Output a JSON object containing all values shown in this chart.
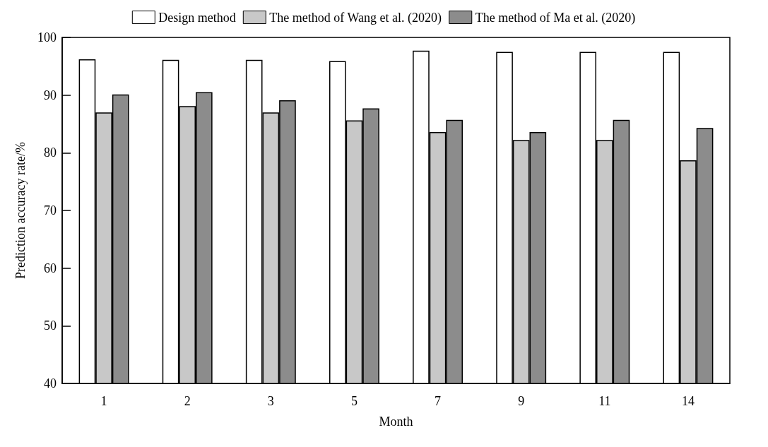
{
  "chart_data": {
    "type": "bar",
    "xlabel": "Month",
    "ylabel": "Prediction accuracy rate/%",
    "categories": [
      "1",
      "2",
      "3",
      "5",
      "7",
      "9",
      "11",
      "14"
    ],
    "series": [
      {
        "name": "Design method",
        "color": "#ffffff",
        "values": [
          96.2,
          96.1,
          96.1,
          95.9,
          97.7,
          97.5,
          97.5,
          97.5
        ]
      },
      {
        "name": "The method of Wang et al. (2020)",
        "color": "#c8c8c8",
        "values": [
          87.0,
          88.1,
          87.0,
          85.6,
          83.6,
          82.2,
          82.2,
          78.7
        ]
      },
      {
        "name": "The method of Ma et al. (2020)",
        "color": "#8c8c8c",
        "values": [
          90.1,
          90.5,
          89.1,
          87.7,
          85.7,
          83.6,
          85.7,
          84.3
        ]
      }
    ],
    "ylim": [
      40,
      100
    ],
    "yticks": [
      40,
      50,
      60,
      70,
      80,
      90,
      100
    ],
    "grid": false,
    "legend": "top"
  }
}
